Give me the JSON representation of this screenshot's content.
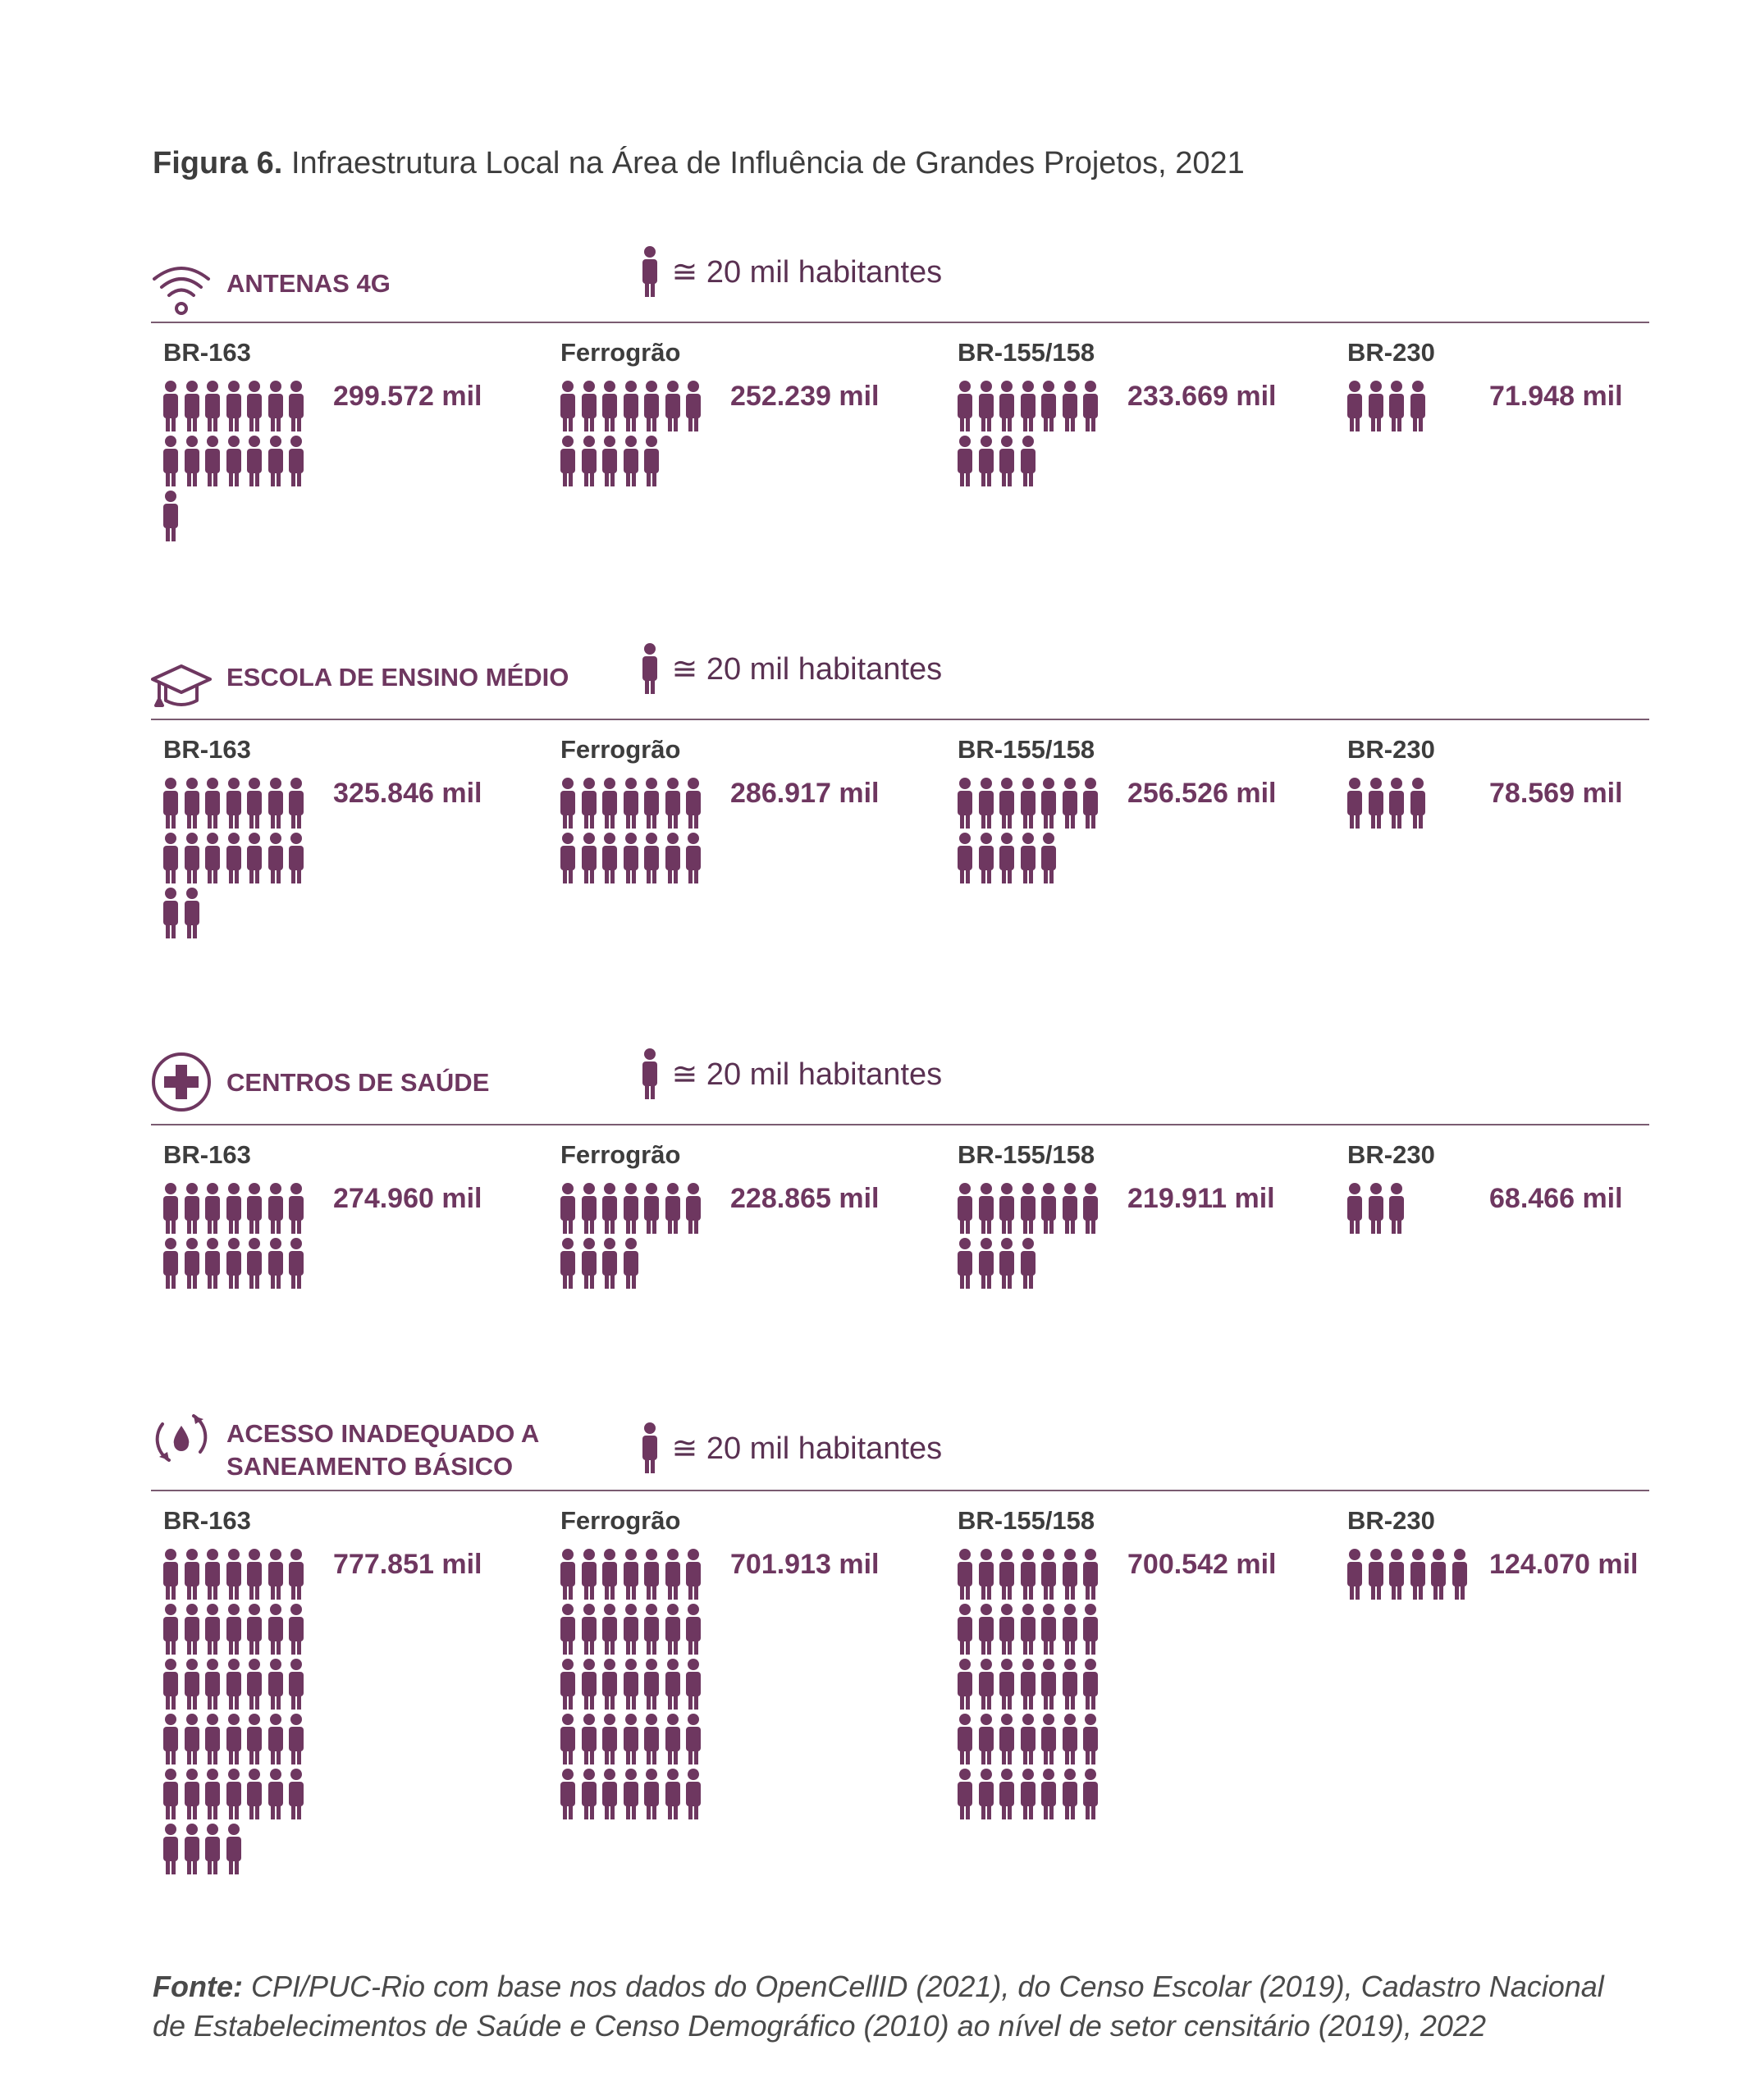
{
  "figure": {
    "label": "Figura 6.",
    "title": "Infraestrutura Local na Área de Influência de Grandes Projetos, 2021"
  },
  "legend_text": "≅ 20 mil habitantes",
  "chart_data": {
    "type": "pictogram",
    "unit_per_icon": 20,
    "colors": {
      "accent": "#6e3760",
      "text": "#3d3d3d"
    },
    "categories": [
      "BR-163",
      "Ferrogrão",
      "BR-155/158",
      "BR-230"
    ],
    "panels": [
      {
        "title": "ANTENAS 4G",
        "icon": "wifi-icon",
        "values": [
          {
            "category": "BR-163",
            "label": "299.572 mil",
            "value": 299.572,
            "icons": 15
          },
          {
            "category": "Ferrogrão",
            "label": "252.239 mil",
            "value": 252.239,
            "icons": 12
          },
          {
            "category": "BR-155/158",
            "label": "233.669 mil",
            "value": 233.669,
            "icons": 11
          },
          {
            "category": "BR-230",
            "label": "71.948 mil",
            "value": 71.948,
            "icons": 4
          }
        ]
      },
      {
        "title": "ESCOLA DE ENSINO MÉDIO",
        "icon": "graduation-cap-icon",
        "values": [
          {
            "category": "BR-163",
            "label": "325.846 mil",
            "value": 325.846,
            "icons": 16
          },
          {
            "category": "Ferrogrão",
            "label": "286.917 mil",
            "value": 286.917,
            "icons": 14
          },
          {
            "category": "BR-155/158",
            "label": "256.526 mil",
            "value": 256.526,
            "icons": 12
          },
          {
            "category": "BR-230",
            "label": "78.569 mil",
            "value": 78.569,
            "icons": 4
          }
        ]
      },
      {
        "title": "CENTROS DE SAÚDE",
        "icon": "health-cross-icon",
        "values": [
          {
            "category": "BR-163",
            "label": "274.960 mil",
            "value": 274.96,
            "icons": 14
          },
          {
            "category": "Ferrogrão",
            "label": "228.865 mil",
            "value": 228.865,
            "icons": 11
          },
          {
            "category": "BR-155/158",
            "label": "219.911 mil",
            "value": 219.911,
            "icons": 11
          },
          {
            "category": "BR-230",
            "label": "68.466 mil",
            "value": 68.466,
            "icons": 3
          }
        ]
      },
      {
        "title": "ACESSO INADEQUADO A SANEAMENTO BÁSICO",
        "title_lines": [
          "ACESSO INADEQUADO A",
          "SANEAMENTO BÁSICO"
        ],
        "icon": "water-cycle-icon",
        "values": [
          {
            "category": "BR-163",
            "label": "777.851 mil",
            "value": 777.851,
            "icons": 39
          },
          {
            "category": "Ferrogrão",
            "label": "701.913 mil",
            "value": 701.913,
            "icons": 35
          },
          {
            "category": "BR-155/158",
            "label": "700.542 mil",
            "value": 700.542,
            "icons": 35
          },
          {
            "category": "BR-230",
            "label": "124.070 mil",
            "value": 124.07,
            "icons": 6
          }
        ]
      }
    ]
  },
  "source": {
    "label": "Fonte:",
    "text": "CPI/PUC-Rio com base nos dados do OpenCellID (2021), do Censo Escolar (2019), Cadastro Nacional de Estabelecimentos de Saúde e Censo Demográfico (2010) ao nível de setor censitário (2019), 2022"
  }
}
